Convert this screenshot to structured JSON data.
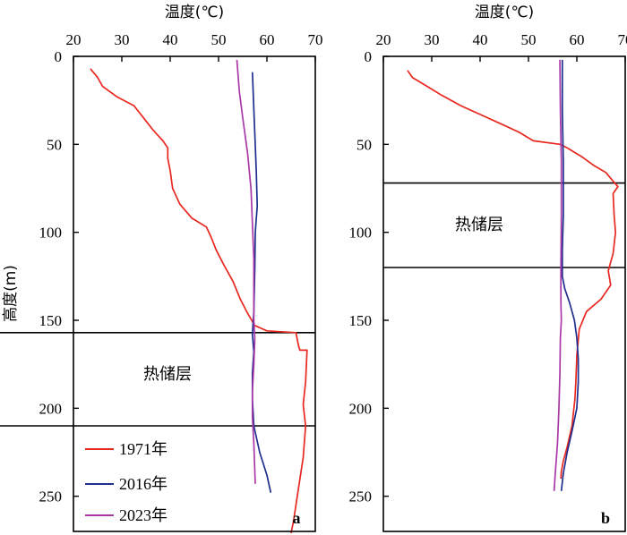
{
  "chart_data": [
    {
      "type": "line",
      "panel_label": "a",
      "x_title": "温度(℃)",
      "y_title": "高度(m)",
      "x_ticks": [
        20,
        30,
        40,
        50,
        60,
        70
      ],
      "y_ticks": [
        0,
        50,
        100,
        150,
        200,
        250
      ],
      "xlim": [
        20,
        70
      ],
      "ylim": [
        0,
        270
      ],
      "x_axis_position": "top",
      "y_inverted": true,
      "grid": false,
      "legend_position": "bottom-left",
      "series": [
        {
          "name": "1971年",
          "color": "#e8271f",
          "points": [
            [
              23.5,
              7
            ],
            [
              25,
              12
            ],
            [
              26,
              17
            ],
            [
              29,
              23
            ],
            [
              32.5,
              28
            ],
            [
              34.5,
              35
            ],
            [
              36.5,
              42
            ],
            [
              38.5,
              48
            ],
            [
              39.5,
              52
            ],
            [
              39.5,
              58
            ],
            [
              40,
              65
            ],
            [
              40.5,
              75
            ],
            [
              42,
              84
            ],
            [
              44.5,
              92
            ],
            [
              47.5,
              97
            ],
            [
              48.5,
              103
            ],
            [
              49.5,
              110
            ],
            [
              51,
              118
            ],
            [
              53,
              128
            ],
            [
              54.5,
              138
            ],
            [
              56,
              146
            ],
            [
              57.5,
              153
            ],
            [
              60,
              156
            ],
            [
              66,
              157
            ],
            [
              66.5,
              164
            ],
            [
              66.8,
              167
            ],
            [
              68.3,
              167
            ],
            [
              68,
              185
            ],
            [
              67.5,
              198
            ],
            [
              68,
              210
            ],
            [
              67.5,
              228
            ],
            [
              66.5,
              246
            ],
            [
              65.5,
              264
            ],
            [
              65,
              271
            ]
          ]
        },
        {
          "name": "2016年",
          "color": "#1f2f8f",
          "points": [
            [
              57,
              9
            ],
            [
              57.3,
              30
            ],
            [
              57.8,
              65
            ],
            [
              58,
              85
            ],
            [
              57.6,
              100
            ],
            [
              57.5,
              120
            ],
            [
              57.3,
              145
            ],
            [
              57,
              158
            ],
            [
              57.3,
              168
            ],
            [
              57,
              180
            ],
            [
              57,
              195
            ],
            [
              57.3,
              210
            ],
            [
              58.5,
              225
            ],
            [
              60,
              238
            ],
            [
              60.8,
              248
            ]
          ]
        },
        {
          "name": "2023年",
          "color": "#a838a8",
          "points": [
            [
              53.8,
              2
            ],
            [
              54.3,
              20
            ],
            [
              55,
              35
            ],
            [
              56,
              55
            ],
            [
              56.7,
              75
            ],
            [
              57,
              95
            ],
            [
              57.3,
              115
            ],
            [
              57.3,
              135
            ],
            [
              57.3,
              150
            ],
            [
              57.5,
              160
            ],
            [
              57.3,
              175
            ],
            [
              57,
              190
            ],
            [
              57,
              205
            ],
            [
              57.3,
              220
            ],
            [
              57.6,
              243
            ]
          ]
        }
      ],
      "layers": [
        {
          "label": "热储层",
          "top": 157,
          "bottom": 210
        }
      ]
    },
    {
      "type": "line",
      "panel_label": "b",
      "x_title": "温度(℃)",
      "x_ticks": [
        20,
        30,
        40,
        50,
        60,
        70
      ],
      "y_ticks": [
        0,
        50,
        100,
        150,
        200,
        250
      ],
      "xlim": [
        20,
        70
      ],
      "ylim": [
        0,
        270
      ],
      "x_axis_position": "top",
      "y_inverted": true,
      "grid": false,
      "series": [
        {
          "name": "1971年",
          "color": "#e8271f",
          "points": [
            [
              25,
              8
            ],
            [
              26,
              12
            ],
            [
              29,
              17
            ],
            [
              32,
              22
            ],
            [
              36,
              28
            ],
            [
              40,
              33
            ],
            [
              44,
              38
            ],
            [
              48,
              43
            ],
            [
              51,
              48
            ],
            [
              56.5,
              50
            ],
            [
              58,
              52
            ],
            [
              61,
              57
            ],
            [
              63.5,
              62
            ],
            [
              66,
              66
            ],
            [
              67.5,
              71
            ],
            [
              68.5,
              74
            ],
            [
              67.5,
              78
            ],
            [
              67.7,
              90
            ],
            [
              68,
              100
            ],
            [
              67.5,
              112
            ],
            [
              66.5,
              122
            ],
            [
              67,
              130
            ],
            [
              66.5,
              132
            ],
            [
              65,
              138
            ],
            [
              62,
              145
            ],
            [
              60.5,
              155
            ],
            [
              60,
              170
            ],
            [
              59.8,
              185
            ],
            [
              59.6,
              195
            ],
            [
              59,
              210
            ],
            [
              58,
              222
            ],
            [
              57.2,
              230
            ],
            [
              56.8,
              236
            ],
            [
              56.7,
              240
            ]
          ]
        },
        {
          "name": "2016年",
          "color": "#1f2f8f",
          "points": [
            [
              57,
              2
            ],
            [
              57,
              30
            ],
            [
              57.2,
              60
            ],
            [
              57.2,
              90
            ],
            [
              57,
              110
            ],
            [
              57,
              125
            ],
            [
              57.5,
              132
            ],
            [
              58.5,
              140
            ],
            [
              59.5,
              150
            ],
            [
              60,
              160
            ],
            [
              60.3,
              172
            ],
            [
              60.3,
              185
            ],
            [
              60,
              200
            ],
            [
              59,
              213
            ],
            [
              58,
              225
            ],
            [
              57.2,
              237
            ],
            [
              56.8,
              247
            ]
          ]
        },
        {
          "name": "2023年",
          "color": "#a838a8",
          "points": [
            [
              56.5,
              2
            ],
            [
              56.6,
              30
            ],
            [
              56.8,
              60
            ],
            [
              56.8,
              90
            ],
            [
              56.7,
              120
            ],
            [
              56.7,
              140
            ],
            [
              56.8,
              150
            ],
            [
              56.6,
              160
            ],
            [
              56.5,
              180
            ],
            [
              56.3,
              200
            ],
            [
              56,
              220
            ],
            [
              55.6,
              235
            ],
            [
              55.3,
              247
            ]
          ]
        }
      ],
      "layers": [
        {
          "label": "热储层",
          "top": 72,
          "bottom": 120
        }
      ]
    }
  ]
}
